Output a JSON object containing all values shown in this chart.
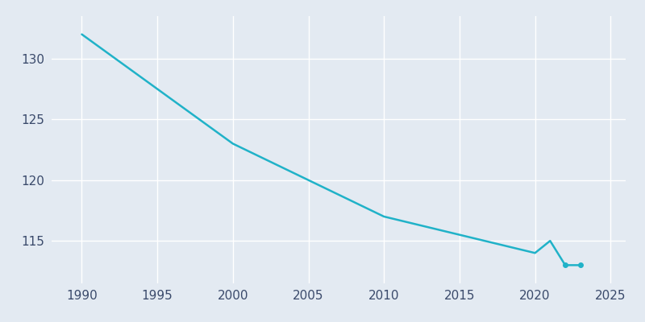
{
  "years": [
    1990,
    2000,
    2010,
    2020,
    2021,
    2022,
    2023
  ],
  "population": [
    132,
    123,
    117,
    114,
    115,
    113,
    113
  ],
  "line_color": "#20B2C8",
  "bg_color": "#E3EAF2",
  "grid_color": "#ffffff",
  "xlim": [
    1988,
    2026
  ],
  "ylim": [
    111.5,
    133.5
  ],
  "xticks": [
    1990,
    1995,
    2000,
    2005,
    2010,
    2015,
    2020,
    2025
  ],
  "yticks": [
    115,
    120,
    125,
    130
  ],
  "linewidth": 1.8,
  "tick_labelsize": 11,
  "marker_years": [
    2022,
    2023
  ],
  "marker_pops": [
    113,
    113
  ]
}
